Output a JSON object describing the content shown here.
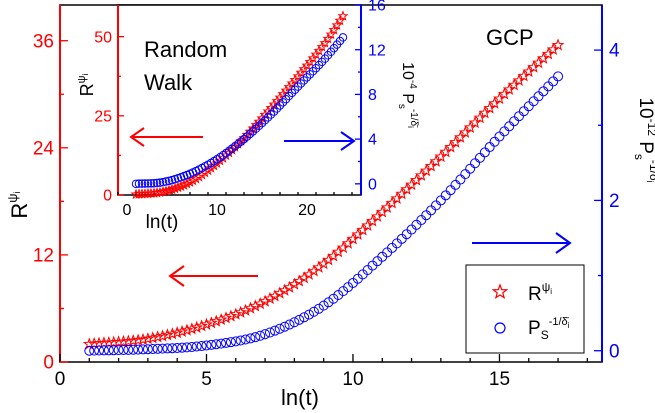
{
  "colors": {
    "red": "#ff0000",
    "blue": "#0000ff",
    "black": "#000000",
    "legend_bg": "#ffffff"
  },
  "icons": {
    "arrow_left": "left-arrow-icon",
    "arrow_right": "right-arrow-icon",
    "star_marker": "star-icon",
    "circle_marker": "circle-icon"
  },
  "chart_data": [
    {
      "id": "main",
      "type": "scatter",
      "annotation": "GCP",
      "xlabel": "ln(t)",
      "x_ticks": [
        0,
        5,
        10,
        15
      ],
      "xlim": [
        0,
        18.5
      ],
      "left_axis": {
        "color": "#ff0000",
        "label": "R^{ψ_i}",
        "ylim": [
          0,
          40
        ],
        "ticks": [
          0,
          12,
          24,
          36
        ]
      },
      "right_axis": {
        "color": "#0000ff",
        "label": "10^{-12} P_s^{-1/δ̄_i}",
        "ylim": [
          -0.15,
          4.6
        ],
        "ticks": [
          0,
          2,
          4
        ]
      },
      "legend": {
        "placement": "bottom-right",
        "entries": [
          {
            "marker": "star",
            "color": "#ff0000",
            "label": "R^{ψ_i}"
          },
          {
            "marker": "circle",
            "color": "#0000ff",
            "label": "P_S^{-1/δ̄_i}"
          }
        ]
      },
      "series": [
        {
          "name": "R^{ψ_i}",
          "axis": "left",
          "marker": "star",
          "color": "#ff0000",
          "x_range": [
            1.0,
            17.0
          ],
          "n": 97,
          "points": [
            [
              1.0,
              2.0
            ],
            [
              3.0,
              2.6
            ],
            [
              5.0,
              4.2
            ],
            [
              7.0,
              6.8
            ],
            [
              9.0,
              11.0
            ],
            [
              11.0,
              16.8
            ],
            [
              13.0,
              23.0
            ],
            [
              15.0,
              29.5
            ],
            [
              17.0,
              35.5
            ]
          ]
        },
        {
          "name": "P_S^{-1/δ̄_i}",
          "axis": "right",
          "marker": "circle",
          "color": "#0000ff",
          "x_range": [
            1.0,
            17.0
          ],
          "n": 97,
          "points": [
            [
              1.0,
              0.0
            ],
            [
              3.0,
              0.02
            ],
            [
              5.0,
              0.07
            ],
            [
              7.0,
              0.22
            ],
            [
              9.0,
              0.6
            ],
            [
              11.0,
              1.25
            ],
            [
              13.0,
              2.0
            ],
            [
              15.0,
              2.85
            ],
            [
              17.0,
              3.65
            ]
          ]
        }
      ]
    },
    {
      "id": "inset",
      "type": "scatter",
      "annotation_line1": "Random",
      "annotation_line2": "Walk",
      "xlabel": "ln(t)",
      "x_ticks": [
        0,
        10,
        20
      ],
      "x_tick_labels": [
        "0",
        "10",
        "20"
      ],
      "xlim": [
        -1,
        26
      ],
      "left_axis": {
        "color": "#ff0000",
        "label": "R^{ψ_i}",
        "ylim": [
          0,
          60
        ],
        "ticks": [
          0,
          25,
          50
        ]
      },
      "right_axis": {
        "color": "#0000ff",
        "label": "10^{-4} P_s^{-1/δ̄_i}",
        "ylim": [
          -1,
          16
        ],
        "ticks": [
          0,
          4,
          8,
          12,
          16
        ]
      },
      "series": [
        {
          "name": "R^{ψ_i}",
          "axis": "left",
          "marker": "star",
          "color": "#ff0000",
          "x_range": [
            1.0,
            24.0
          ],
          "n": 70,
          "points": [
            [
              1.0,
              0.2
            ],
            [
              4.0,
              1.0
            ],
            [
              7.0,
              4.0
            ],
            [
              10.0,
              10.0
            ],
            [
              13.0,
              18.0
            ],
            [
              16.0,
              27.5
            ],
            [
              19.0,
              37.5
            ],
            [
              22.0,
              48.0
            ],
            [
              24.0,
              56.5
            ]
          ]
        },
        {
          "name": "P_S^{-1/δ̄_i}",
          "axis": "right",
          "marker": "circle",
          "color": "#0000ff",
          "x_range": [
            1.0,
            24.0
          ],
          "n": 70,
          "points": [
            [
              1.0,
              0.0
            ],
            [
              4.0,
              0.15
            ],
            [
              7.0,
              0.9
            ],
            [
              10.0,
              2.2
            ],
            [
              13.0,
              4.0
            ],
            [
              16.0,
              6.2
            ],
            [
              19.0,
              8.7
            ],
            [
              22.0,
              11.2
            ],
            [
              24.0,
              13.1
            ]
          ]
        }
      ]
    }
  ]
}
